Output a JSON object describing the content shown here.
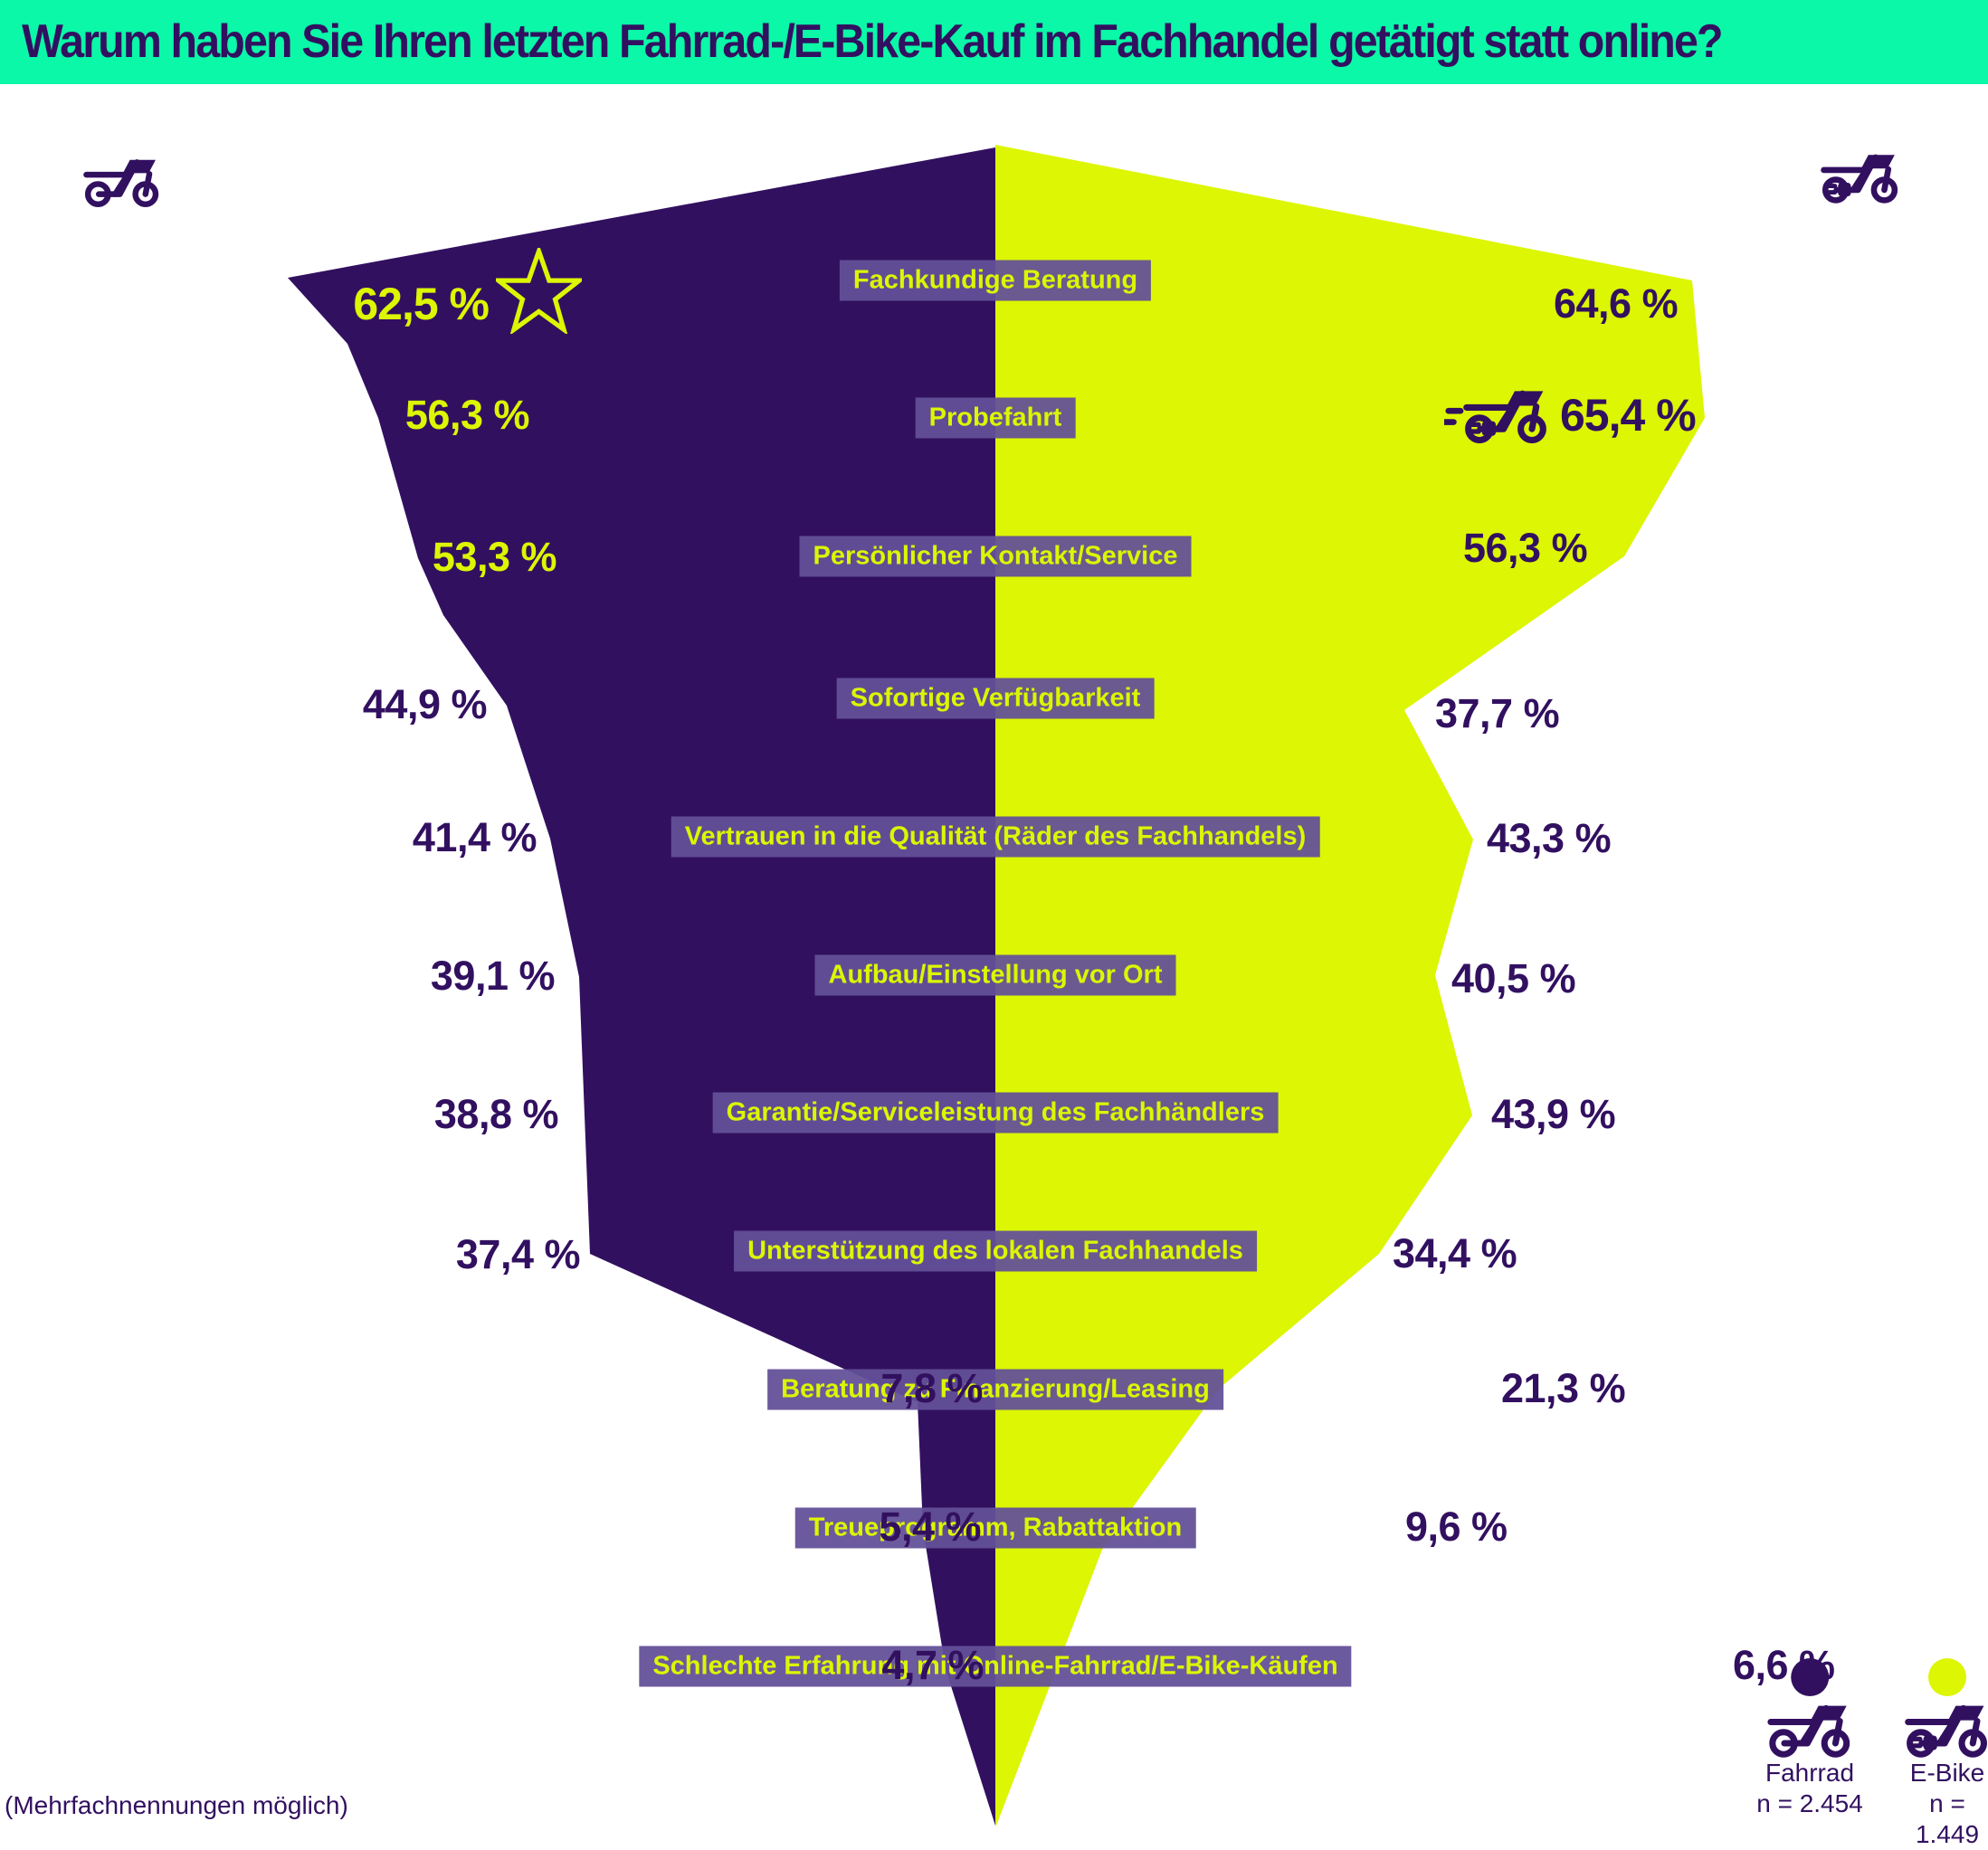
{
  "header": {
    "title": "Warum haben Sie Ihren letzten Fahrrad-/E-Bike-Kauf im Fachhandel getätigt statt online?"
  },
  "rows": [
    {
      "label": "Fachkundige Beratung",
      "left": "62,5 %",
      "right": "64,6 %"
    },
    {
      "label": "Probefahrt",
      "left": "56,3 %",
      "right": "65,4 %"
    },
    {
      "label": "Persönlicher Kontakt/Service",
      "left": "53,3 %",
      "right": "56,3 %"
    },
    {
      "label": "Sofortige Verfügbarkeit",
      "left": "44,9 %",
      "right": "37,7 %"
    },
    {
      "label": "Vertrauen in die Qualität (Räder des Fachhandels)",
      "left": "41,4 %",
      "right": "43,3 %"
    },
    {
      "label": "Aufbau/Einstellung vor Ort",
      "left": "39,1 %",
      "right": "40,5 %"
    },
    {
      "label": "Garantie/Serviceleistung des Fachhändlers",
      "left": "38,8 %",
      "right": "43,9 %"
    },
    {
      "label": "Unterstützung des lokalen Fachhandels",
      "left": "37,4 %",
      "right": "34,4 %"
    },
    {
      "label": "Beratung zu Finanzierung/Leasing",
      "left": "7,8 %",
      "right": "21,3 %"
    },
    {
      "label": "Treueprogramm, Rabattaktion",
      "left": "5,4 %",
      "right": "9,6 %"
    },
    {
      "label": "Schlechte Erfahrung mit Online-Fahrrad/E-Bike-Käufen",
      "left": "4,7 %",
      "right": "6,6 %"
    }
  ],
  "chart_data": {
    "type": "bar",
    "variant": "back-to-back-funnel",
    "title": "Warum haben Sie Ihren letzten Fahrrad-/E-Bike-Kauf im Fachhandel getätigt statt online?",
    "unit": "%",
    "categories": [
      "Fachkundige Beratung",
      "Probefahrt",
      "Persönlicher Kontakt/Service",
      "Sofortige Verfügbarkeit",
      "Vertrauen in die Qualität (Räder des Fachhandels)",
      "Aufbau/Einstellung vor Ort",
      "Garantie/Serviceleistung des Fachhändlers",
      "Unterstützung des lokalen Fachhandels",
      "Beratung zu Finanzierung/Leasing",
      "Treueprogramm, Rabattaktion",
      "Schlechte Erfahrung mit Online-Fahrrad/E-Bike-Käufen"
    ],
    "series": [
      {
        "name": "Fahrrad",
        "sample": "n = 2.454",
        "color": "#321060",
        "values": [
          62.5,
          56.3,
          53.3,
          44.9,
          41.4,
          39.1,
          38.8,
          37.4,
          7.8,
          5.4,
          4.7
        ]
      },
      {
        "name": "E-Bike",
        "sample": "n = 1.449",
        "color": "#dcf603",
        "values": [
          64.6,
          65.4,
          56.3,
          37.7,
          43.3,
          40.5,
          43.9,
          34.4,
          21.3,
          9.6,
          6.6
        ]
      }
    ],
    "annotations": [
      {
        "type": "star",
        "target": "Fahrrad / Fachkundige Beratung (62,5 %)"
      },
      {
        "type": "e-bike-icon",
        "target": "E-Bike / Probefahrt (65,4 %)"
      },
      {
        "type": "bold-max",
        "targets": [
          "62,5 %",
          "65,4 %"
        ]
      }
    ],
    "legend_position": "bottom-right",
    "note": "(Mehrfachnennungen möglich)"
  },
  "legend": {
    "items": [
      {
        "label": "Fahrrad",
        "n": "n = 2.454",
        "dot_color": "#321060",
        "icon": "bicycle-icon"
      },
      {
        "label": "E-Bike",
        "n": "n = 1.449",
        "dot_color": "#dcf603",
        "icon": "e-bike-icon"
      }
    ]
  },
  "footnote": {
    "text": "(Mehrfachnennungen möglich)"
  },
  "icons": {
    "top_left": "bicycle-icon",
    "top_right": "e-bike-icon",
    "row1_left": "star-icon",
    "row2_right": "e-bike-speed-icon"
  },
  "colors": {
    "background": "#ffffff",
    "header_bg": "#0af8a7",
    "fahrrad_purple": "#321060",
    "ebike_yellow": "#dcf603",
    "badge_bg": "#66529c",
    "badge_text": "#dcf603"
  }
}
